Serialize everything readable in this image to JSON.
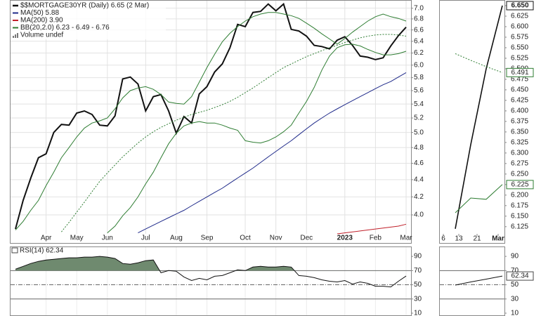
{
  "chart_data": [
    {
      "type": "line",
      "log_scale": true,
      "grid": true,
      "categories": [
        null,
        null,
        null,
        null,
        "Apr",
        null,
        null,
        null,
        "May",
        null,
        null,
        null,
        "Jun",
        null,
        null,
        null,
        null,
        "Jul",
        null,
        null,
        null,
        "Aug",
        null,
        null,
        null,
        "Sep",
        null,
        null,
        null,
        null,
        "Oct",
        null,
        null,
        null,
        "Nov",
        null,
        null,
        null,
        "Dec",
        null,
        null,
        null,
        null,
        "2023",
        null,
        null,
        null,
        "Feb",
        null,
        null,
        null,
        "Mar"
      ],
      "ylim": [
        3.8,
        7.13
      ],
      "yticks": [
        {
          "value": 4,
          "label": "4.0"
        },
        4.2,
        4.4,
        4.6,
        4.8,
        {
          "value": 5,
          "label": "5.0"
        },
        5.2,
        5.4,
        5.6,
        5.8,
        {
          "value": 6,
          "label": "6.0"
        },
        6.2,
        6.4,
        6.6,
        6.8,
        {
          "value": 7,
          "label": "7.0"
        }
      ],
      "series": [
        {
          "name": "$$MORTGAGE30YR (Daily) 6.65 (2 Mar)",
          "color": "#111111",
          "values": [
            3.85,
            4.16,
            4.42,
            4.67,
            4.72,
            5.0,
            5.11,
            5.1,
            5.27,
            5.3,
            5.25,
            5.1,
            5.09,
            5.23,
            5.78,
            5.81,
            5.7,
            5.3,
            5.51,
            5.54,
            5.3,
            4.99,
            5.22,
            5.13,
            5.55,
            5.66,
            5.89,
            6.02,
            6.29,
            6.7,
            6.66,
            6.92,
            6.94,
            7.08,
            6.95,
            7.08,
            6.61,
            6.58,
            6.49,
            6.33,
            6.31,
            6.27,
            6.42,
            6.48,
            6.33,
            6.15,
            6.13,
            6.09,
            6.12,
            6.32,
            6.5,
            6.65
          ]
        },
        {
          "name": "MA(50) 5.88",
          "color": "#1f2a8a",
          "values": [
            null,
            null,
            null,
            null,
            null,
            null,
            null,
            null,
            null,
            null,
            null,
            null,
            null,
            null,
            null,
            null,
            3.81,
            3.85,
            3.89,
            3.93,
            3.97,
            4.01,
            4.05,
            4.1,
            4.15,
            4.2,
            4.25,
            4.3,
            4.36,
            4.42,
            4.48,
            4.54,
            4.61,
            4.68,
            4.75,
            4.82,
            4.89,
            4.97,
            5.05,
            5.13,
            5.2,
            5.27,
            5.33,
            5.39,
            5.45,
            5.51,
            5.57,
            5.63,
            5.69,
            5.74,
            5.81,
            5.88
          ]
        },
        {
          "name": "MA(200) 3.90",
          "color": "#c0202a",
          "values": [
            null,
            null,
            null,
            null,
            null,
            null,
            null,
            null,
            null,
            null,
            null,
            null,
            null,
            null,
            null,
            null,
            null,
            null,
            null,
            null,
            null,
            null,
            null,
            null,
            null,
            null,
            null,
            null,
            null,
            null,
            null,
            null,
            null,
            null,
            null,
            null,
            null,
            null,
            null,
            null,
            null,
            null,
            3.8,
            3.81,
            3.82,
            3.83,
            3.84,
            3.85,
            3.86,
            3.87,
            3.88,
            3.9
          ]
        },
        {
          "name": "BB(20,2.0) 6.23 - 6.49 - 6.76",
          "color": "#2e7d32",
          "lower": [
            null,
            null,
            null,
            null,
            null,
            null,
            null,
            null,
            null,
            null,
            null,
            null,
            3.81,
            3.88,
            3.99,
            4.08,
            4.2,
            4.35,
            4.49,
            4.67,
            4.85,
            4.99,
            5.09,
            5.13,
            5.15,
            5.13,
            5.13,
            5.1,
            5.06,
            5.03,
            4.89,
            4.87,
            4.86,
            4.89,
            4.94,
            5.01,
            5.1,
            5.27,
            5.44,
            5.65,
            5.92,
            6.15,
            6.29,
            6.34,
            6.35,
            6.32,
            6.26,
            6.21,
            6.17,
            6.17,
            6.19,
            6.23
          ],
          "middle": [
            null,
            null,
            null,
            null,
            null,
            null,
            3.82,
            3.92,
            4.03,
            4.14,
            4.26,
            4.38,
            4.48,
            4.58,
            4.68,
            4.77,
            4.86,
            4.94,
            5.01,
            5.07,
            5.12,
            5.17,
            5.21,
            5.25,
            5.28,
            5.31,
            5.35,
            5.39,
            5.44,
            5.5,
            5.57,
            5.64,
            5.72,
            5.8,
            5.88,
            5.96,
            6.02,
            6.08,
            6.14,
            6.19,
            6.24,
            6.29,
            6.33,
            6.38,
            6.42,
            6.46,
            6.49,
            6.51,
            6.52,
            6.52,
            6.51,
            6.49
          ],
          "upper": [
            3.84,
            3.93,
            4.05,
            4.16,
            4.33,
            4.49,
            4.67,
            4.8,
            4.94,
            5.06,
            5.13,
            5.16,
            5.2,
            5.33,
            5.49,
            5.6,
            5.64,
            5.66,
            5.62,
            5.54,
            5.43,
            5.41,
            5.4,
            5.51,
            5.73,
            5.96,
            6.18,
            6.39,
            6.54,
            6.66,
            6.76,
            6.84,
            6.89,
            6.92,
            6.92,
            6.89,
            6.86,
            6.81,
            6.72,
            6.63,
            6.53,
            6.44,
            6.35,
            6.45,
            6.56,
            6.66,
            6.76,
            6.84,
            6.89,
            6.84,
            6.81,
            6.76
          ]
        },
        {
          "name": "Volume undef",
          "color": "#777777"
        }
      ]
    },
    {
      "type": "rsi",
      "title": "RSI(14) 62.34",
      "color": "#111111",
      "fill_color": "#6f8a6f",
      "ylim": [
        7,
        100
      ],
      "yticks": [
        90,
        70,
        50,
        30,
        10
      ],
      "overbought": 70,
      "midline": 50,
      "oversold": 30,
      "values": [
        72,
        76,
        80,
        83,
        85,
        86,
        87,
        88,
        88,
        89,
        89,
        90,
        89,
        87,
        80,
        79,
        81,
        84,
        85,
        67,
        70,
        69,
        61,
        56,
        59,
        57,
        62,
        63,
        67,
        71,
        70,
        75,
        76,
        75,
        75,
        76,
        75,
        63,
        62,
        60,
        57,
        55,
        54,
        56,
        51,
        54,
        52,
        48,
        48,
        47,
        55,
        62.34
      ]
    },
    {
      "type": "line",
      "categories": [
        "6",
        "13",
        "21",
        "Mar"
      ],
      "ylim": [
        6.108,
        6.66
      ],
      "yticks": [
        {
          "value": 6.65,
          "label": "6.650"
        },
        6.625,
        {
          "value": 6.6,
          "label": "6.600"
        },
        6.575,
        {
          "value": 6.55,
          "label": "6.550"
        },
        6.525,
        {
          "value": 6.5,
          "label": "6.500"
        },
        6.475,
        {
          "value": 6.45,
          "label": "6.450"
        },
        6.425,
        {
          "value": 6.4,
          "label": "6.400"
        },
        6.375,
        {
          "value": 6.35,
          "label": "6.350"
        },
        6.325,
        {
          "value": 6.3,
          "label": "6.300"
        },
        6.275,
        {
          "value": 6.25,
          "label": "6.250"
        },
        6.225,
        {
          "value": 6.2,
          "label": "6.200"
        },
        6.175,
        {
          "value": 6.15,
          "label": "6.150"
        },
        6.125
      ],
      "series": [
        {
          "color": "#111111",
          "values": [
            6.12,
            6.32,
            6.5,
            6.65
          ],
          "value_labels": [
            null,
            null,
            null,
            "6.650"
          ]
        },
        {
          "color": "#2e7d32",
          "dashed": true,
          "values": [
            6.536,
            6.52,
            6.505,
            6.491
          ]
        },
        {
          "color": "#2e7d32",
          "values": [
            6.158,
            6.193,
            6.19,
            6.225
          ]
        }
      ]
    },
    {
      "type": "rsi",
      "color": "#111111",
      "ylim": [
        7,
        100
      ],
      "yticks": [
        90,
        70,
        50,
        30,
        10
      ],
      "overbought": 70,
      "midline": 50,
      "oversold": 30,
      "values": [
        49.5,
        54,
        58,
        62.34
      ]
    }
  ]
}
